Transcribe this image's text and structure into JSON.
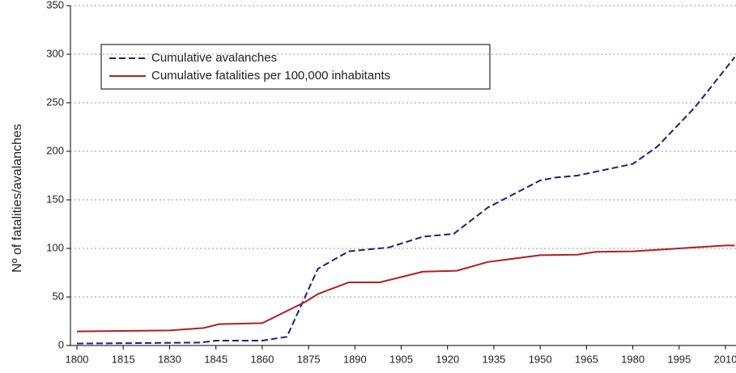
{
  "chart_data": {
    "type": "line",
    "y_label": "Nº of fatalities/avalanches",
    "xlim": [
      1797.9,
      2013.4
    ],
    "ylim": [
      0,
      350
    ],
    "xticks": [
      1800,
      1815,
      1830,
      1845,
      1860,
      1875,
      1890,
      1905,
      1920,
      1935,
      1950,
      1965,
      1980,
      1995,
      2010
    ],
    "yticks": [
      0,
      50,
      100,
      150,
      200,
      250,
      300,
      350
    ],
    "grid": true,
    "legend": "upper left",
    "series": [
      {
        "name": "Cumulative avalanches",
        "color": "#1f1f7a",
        "dashed": true,
        "x": [
          1800,
          1840,
          1845,
          1860,
          1868,
          1878,
          1888,
          1901,
          1912,
          1922,
          1933,
          1950,
          1955,
          1962,
          1980,
          1988,
          2000,
          2013
        ],
        "values": [
          2,
          3,
          5,
          5,
          9,
          79,
          97,
          101,
          112,
          115,
          142,
          170,
          173,
          175,
          187,
          205,
          245,
          297
        ]
      },
      {
        "name": "Cumulative fatalities per 100,000 inhabitants",
        "color": "#b02020",
        "dashed": false,
        "x": [
          1800,
          1830,
          1841,
          1846,
          1860,
          1874,
          1878,
          1888,
          1898,
          1912,
          1923,
          1933,
          1950,
          1962,
          1968,
          1980,
          1990,
          2000,
          2010,
          2013
        ],
        "values": [
          14.5,
          15.5,
          18,
          22,
          23,
          45,
          53,
          65,
          65,
          76,
          77,
          86,
          93,
          93.5,
          96.5,
          97,
          99,
          101,
          103,
          103
        ]
      }
    ]
  }
}
